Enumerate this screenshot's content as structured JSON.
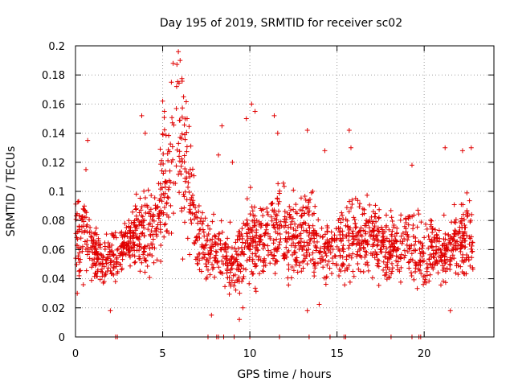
{
  "chart_data": {
    "type": "scatter",
    "title": "Day 195 of 2019, SRMTID for receiver sc02",
    "xlabel": "GPS time / hours",
    "ylabel": "SRMTID / TECUs",
    "xlim": [
      0,
      24
    ],
    "ylim": [
      0,
      0.2
    ],
    "x_ticks": [
      0,
      5,
      10,
      15,
      20
    ],
    "x_tick_labels": [
      "0",
      "5",
      "10",
      "15",
      "20"
    ],
    "y_ticks": [
      0,
      0.02,
      0.04,
      0.06,
      0.08,
      0.1,
      0.12,
      0.14,
      0.16,
      0.18,
      0.2
    ],
    "y_tick_labels": [
      "0",
      "0.02",
      "0.04",
      "0.06",
      "0.08",
      "0.1",
      "0.12",
      "0.14",
      "0.16",
      "0.18",
      "0.2"
    ],
    "grid": true,
    "marker": "plus",
    "color": "#e00000",
    "trend": {
      "x": [
        0,
        0.5,
        1,
        1.5,
        2,
        2.5,
        3,
        3.5,
        4,
        4.5,
        5,
        5.5,
        6,
        6.5,
        7,
        7.5,
        8,
        8.5,
        9,
        9.5,
        10,
        10.5,
        11,
        11.5,
        12,
        12.5,
        13,
        13.5,
        14,
        14.5,
        15,
        15.5,
        16,
        16.5,
        17,
        17.5,
        18,
        18.5,
        19,
        19.5,
        20,
        20.5,
        21,
        21.5,
        22,
        22.5,
        22.8
      ],
      "y": [
        0.07,
        0.075,
        0.06,
        0.052,
        0.055,
        0.06,
        0.065,
        0.07,
        0.075,
        0.072,
        0.1,
        0.12,
        0.13,
        0.1,
        0.07,
        0.06,
        0.058,
        0.06,
        0.05,
        0.055,
        0.07,
        0.065,
        0.068,
        0.07,
        0.072,
        0.068,
        0.07,
        0.072,
        0.06,
        0.06,
        0.062,
        0.068,
        0.07,
        0.065,
        0.07,
        0.065,
        0.065,
        0.06,
        0.07,
        0.06,
        0.055,
        0.06,
        0.058,
        0.06,
        0.07,
        0.065,
        0.065
      ],
      "spread": [
        0.025,
        0.02,
        0.012,
        0.012,
        0.012,
        0.012,
        0.012,
        0.015,
        0.02,
        0.015,
        0.03,
        0.035,
        0.035,
        0.03,
        0.018,
        0.015,
        0.015,
        0.015,
        0.018,
        0.015,
        0.02,
        0.02,
        0.018,
        0.02,
        0.02,
        0.02,
        0.02,
        0.02,
        0.018,
        0.015,
        0.015,
        0.02,
        0.018,
        0.015,
        0.02,
        0.018,
        0.018,
        0.015,
        0.02,
        0.015,
        0.015,
        0.015,
        0.015,
        0.015,
        0.02,
        0.018,
        0.018
      ]
    },
    "spikes": [
      {
        "x": 0.6,
        "y": 0.115
      },
      {
        "x": 0.7,
        "y": 0.135
      },
      {
        "x": 3.8,
        "y": 0.152
      },
      {
        "x": 4.0,
        "y": 0.14
      },
      {
        "x": 5.0,
        "y": 0.162
      },
      {
        "x": 5.1,
        "y": 0.155
      },
      {
        "x": 5.5,
        "y": 0.175
      },
      {
        "x": 5.6,
        "y": 0.188
      },
      {
        "x": 5.8,
        "y": 0.172
      },
      {
        "x": 5.9,
        "y": 0.196
      },
      {
        "x": 6.0,
        "y": 0.19
      },
      {
        "x": 6.2,
        "y": 0.165
      },
      {
        "x": 6.4,
        "y": 0.15
      },
      {
        "x": 8.2,
        "y": 0.125
      },
      {
        "x": 8.4,
        "y": 0.145
      },
      {
        "x": 9.0,
        "y": 0.12
      },
      {
        "x": 9.8,
        "y": 0.15
      },
      {
        "x": 10.1,
        "y": 0.16
      },
      {
        "x": 10.3,
        "y": 0.155
      },
      {
        "x": 11.4,
        "y": 0.152
      },
      {
        "x": 11.6,
        "y": 0.14
      },
      {
        "x": 13.3,
        "y": 0.142
      },
      {
        "x": 14.3,
        "y": 0.128
      },
      {
        "x": 15.7,
        "y": 0.142
      },
      {
        "x": 15.8,
        "y": 0.13
      },
      {
        "x": 19.3,
        "y": 0.118
      },
      {
        "x": 21.2,
        "y": 0.13
      },
      {
        "x": 22.2,
        "y": 0.128
      },
      {
        "x": 22.7,
        "y": 0.13
      },
      {
        "x": 9.4,
        "y": 0.012
      },
      {
        "x": 7.8,
        "y": 0.015
      },
      {
        "x": 2.0,
        "y": 0.018
      },
      {
        "x": 13.3,
        "y": 0.018
      },
      {
        "x": 21.5,
        "y": 0.018
      },
      {
        "x": 0.1,
        "y": 0.03
      },
      {
        "x": 9.6,
        "y": 0.02
      }
    ],
    "zero_points_x": [
      2.3,
      2.4,
      7.6,
      8.1,
      8.2,
      8.5,
      9.1,
      10.0,
      11.7,
      13.4,
      14.6,
      15.4,
      15.5,
      18.1,
      19.3,
      19.7,
      19.8
    ]
  }
}
